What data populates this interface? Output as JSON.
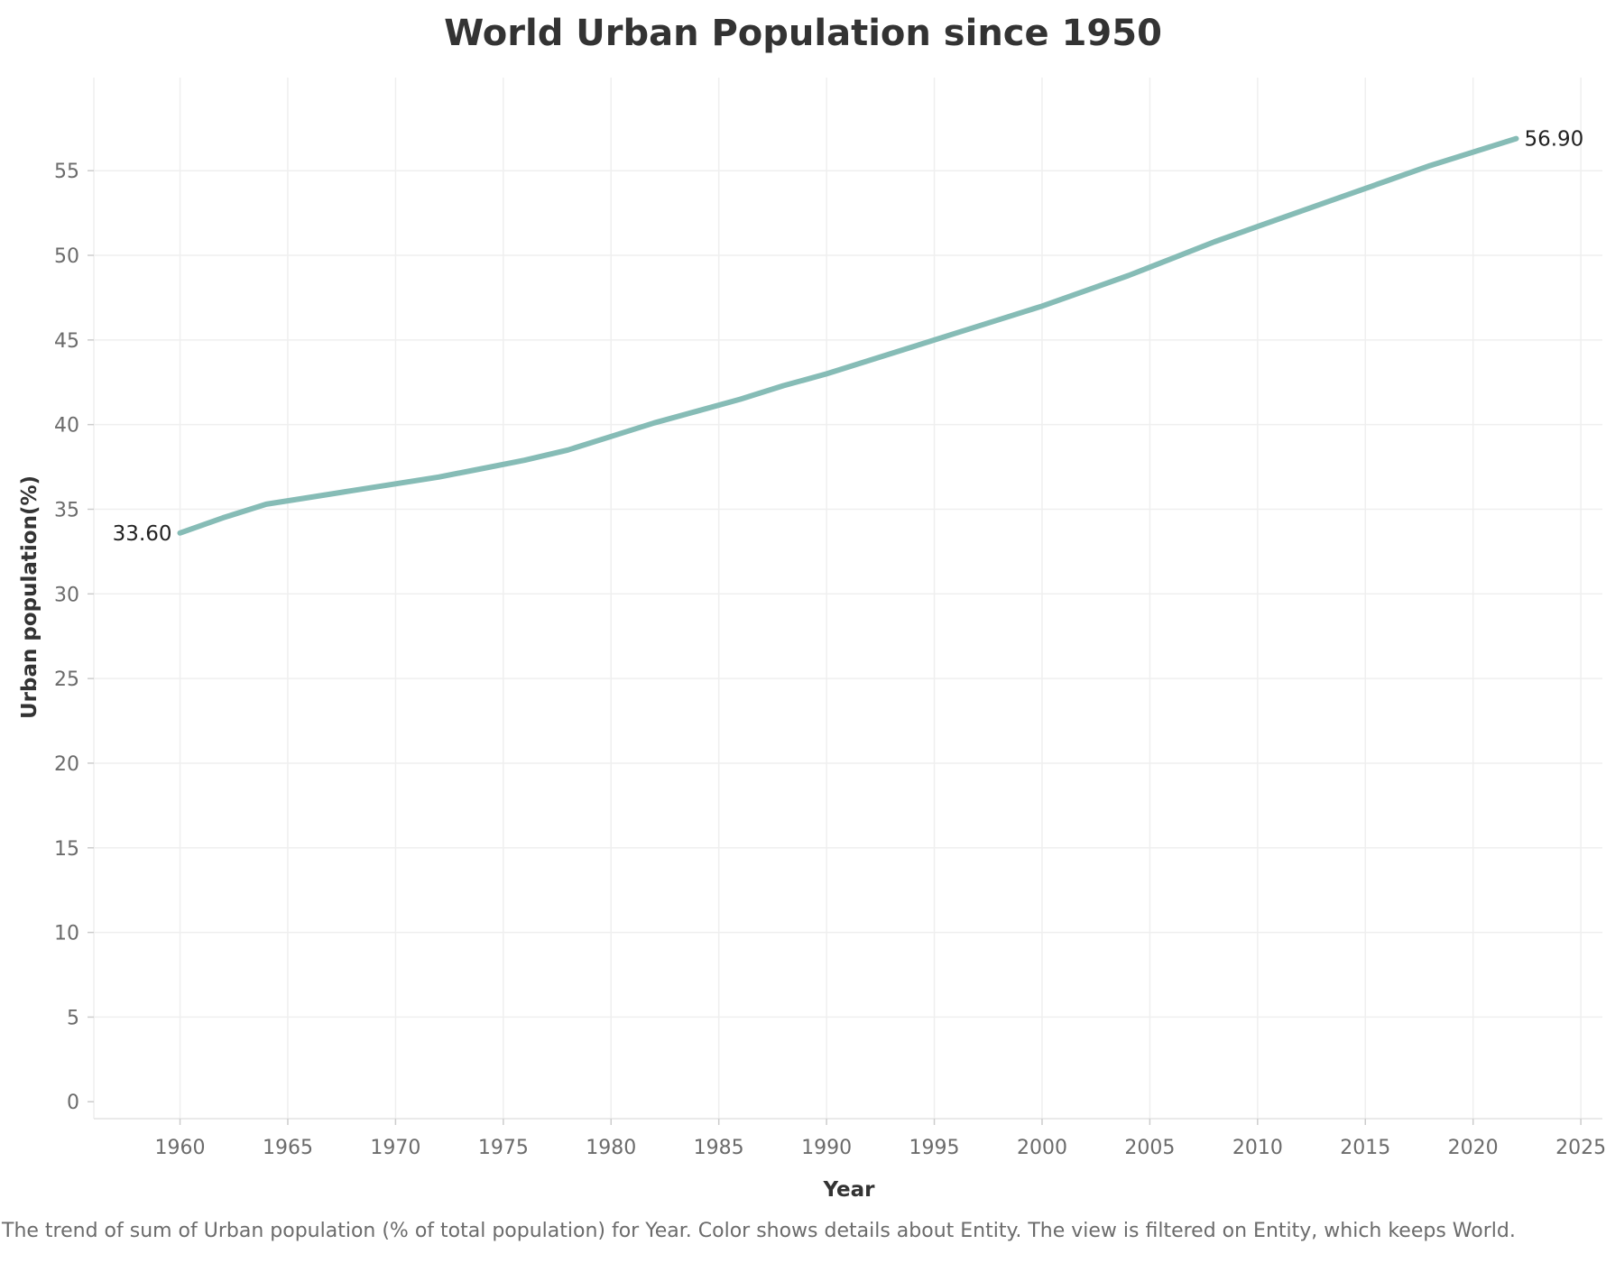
{
  "chart_data": {
    "type": "line",
    "title": "World Urban Population since 1950",
    "xlabel": "Year",
    "ylabel": "Urban population(%)",
    "caption": "The trend of sum of Urban population (% of total population) for Year.  Color shows details about Entity. The view is filtered on Entity, which keeps World.",
    "xlim": [
      1956,
      2026
    ],
    "ylim": [
      -1,
      60.5
    ],
    "x_ticks": [
      1960,
      1965,
      1970,
      1975,
      1980,
      1985,
      1990,
      1995,
      2000,
      2005,
      2010,
      2015,
      2020,
      2025
    ],
    "y_ticks": [
      0,
      5,
      10,
      15,
      20,
      25,
      30,
      35,
      40,
      45,
      50,
      55
    ],
    "grid": true,
    "series": [
      {
        "color": "#86bcb6",
        "x": [
          1960,
          1962,
          1964,
          1966,
          1968,
          1970,
          1972,
          1974,
          1976,
          1978,
          1980,
          1982,
          1984,
          1986,
          1988,
          1990,
          1992,
          1994,
          1996,
          1998,
          2000,
          2002,
          2004,
          2006,
          2008,
          2010,
          2012,
          2014,
          2016,
          2018,
          2020,
          2022
        ],
        "y": [
          33.6,
          34.5,
          35.3,
          35.7,
          36.1,
          36.5,
          36.9,
          37.4,
          37.9,
          38.5,
          39.3,
          40.1,
          40.8,
          41.5,
          42.3,
          43.0,
          43.8,
          44.6,
          45.4,
          46.2,
          47.0,
          47.9,
          48.8,
          49.8,
          50.8,
          51.7,
          52.6,
          53.5,
          54.4,
          55.3,
          56.1,
          56.9
        ]
      }
    ],
    "annotations": [
      {
        "text": "33.60",
        "x": 1960,
        "y": 33.6,
        "side": "left"
      },
      {
        "text": "56.90",
        "x": 2022,
        "y": 56.9,
        "side": "right"
      }
    ]
  }
}
